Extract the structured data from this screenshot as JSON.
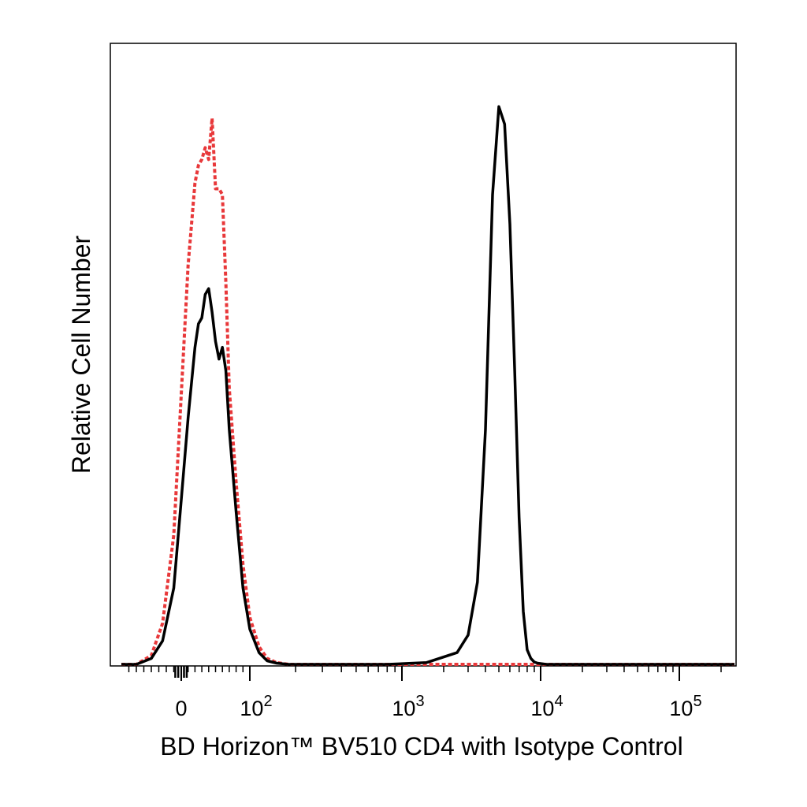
{
  "chart_data": {
    "type": "line",
    "title": "",
    "xlabel": "BD Horizon™ BV510 CD4 with Isotype Control",
    "ylabel": "Relative Cell Number",
    "x_scale": "biexponential",
    "xlim": [
      -80,
      250000
    ],
    "ylim": [
      0,
      100
    ],
    "grid": false,
    "legend": "none",
    "x_ticks": [
      {
        "value": 0,
        "base": "0",
        "exp": ""
      },
      {
        "value": 100,
        "base": "10",
        "exp": "2"
      },
      {
        "value": 1000,
        "base": "10",
        "exp": "3"
      },
      {
        "value": 10000,
        "base": "10",
        "exp": "4"
      },
      {
        "value": 100000,
        "base": "10",
        "exp": "5"
      }
    ],
    "series": [
      {
        "style": "solid",
        "color": "#000000",
        "x": [
          -80,
          -60,
          -40,
          -25,
          -10,
          0,
          10,
          20,
          25,
          30,
          35,
          40,
          45,
          50,
          55,
          60,
          65,
          70,
          80,
          90,
          100,
          115,
          130,
          150,
          180,
          250,
          400,
          800,
          1500,
          2500,
          3000,
          3500,
          4000,
          4500,
          5000,
          5500,
          6000,
          6500,
          7000,
          7500,
          8000,
          8500,
          9000,
          9500,
          11000,
          15000,
          30000,
          100000,
          250000
        ],
        "y": [
          0,
          0,
          1,
          4,
          13,
          28,
          42,
          54,
          58,
          59,
          63,
          64,
          60,
          55,
          52,
          54,
          50,
          40,
          26,
          13,
          6,
          2,
          0.6,
          0.2,
          0,
          0,
          0,
          0,
          0.3,
          2,
          5,
          14,
          40,
          80,
          95,
          92,
          75,
          50,
          25,
          9,
          2.5,
          1,
          0.4,
          0.2,
          0,
          0,
          0,
          0,
          0
        ]
      },
      {
        "style": "dotted",
        "color": "#e8383a",
        "x": [
          -80,
          -60,
          -40,
          -25,
          -10,
          0,
          10,
          20,
          25,
          30,
          35,
          40,
          45,
          50,
          55,
          60,
          65,
          70,
          80,
          90,
          100,
          115,
          130,
          150,
          180,
          250,
          400,
          800,
          1500,
          2500,
          5000,
          10000,
          30000,
          100000,
          250000
        ],
        "y": [
          0,
          0,
          1.5,
          7,
          22,
          46,
          68,
          82,
          85,
          86,
          88,
          86,
          93,
          81,
          81,
          80,
          65,
          47,
          31,
          17,
          8,
          3,
          1,
          0.3,
          0,
          0,
          0,
          0,
          0,
          0,
          0,
          0,
          0,
          0,
          0
        ]
      }
    ]
  }
}
